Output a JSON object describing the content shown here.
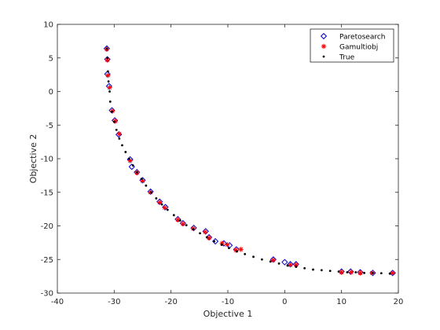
{
  "chart_data": {
    "type": "scatter",
    "xlabel": "Objective 1",
    "ylabel": "Objective 2",
    "xlim": [
      -40,
      20
    ],
    "ylim": [
      -30,
      10
    ],
    "xticks": [
      "-40",
      "-30",
      "-20",
      "-10",
      "0",
      "10",
      "20"
    ],
    "yticks": [
      "-30",
      "-25",
      "-20",
      "-15",
      "-10",
      "-5",
      "0",
      "5",
      "10"
    ],
    "xtick_values": [
      -40,
      -30,
      -20,
      -10,
      0,
      10,
      20
    ],
    "ytick_values": [
      -30,
      -25,
      -20,
      -15,
      -10,
      -5,
      0,
      5,
      10
    ],
    "legend_position": "top-right",
    "series": [
      {
        "name": "Paretosearch",
        "marker": "diamond",
        "color": "#0000cc",
        "points": [
          [
            -31.3,
            6.4
          ],
          [
            -31.2,
            4.8
          ],
          [
            -31.2,
            2.6
          ],
          [
            -30.9,
            0.8
          ],
          [
            -30.4,
            -2.8
          ],
          [
            -29.9,
            -4.3
          ],
          [
            -29.2,
            -6.4
          ],
          [
            -27.2,
            -10.1
          ],
          [
            -26.9,
            -11.2
          ],
          [
            -26.0,
            -12.0
          ],
          [
            -25.0,
            -13.2
          ],
          [
            -23.6,
            -14.9
          ],
          [
            -22.0,
            -16.4
          ],
          [
            -21.0,
            -17.2
          ],
          [
            -18.8,
            -19.0
          ],
          [
            -17.9,
            -19.6
          ],
          [
            -16.0,
            -20.3
          ],
          [
            -13.9,
            -20.8
          ],
          [
            -13.3,
            -21.7
          ],
          [
            -12.2,
            -22.3
          ],
          [
            -10.7,
            -22.6
          ],
          [
            -9.7,
            -22.9
          ],
          [
            -8.5,
            -23.5
          ],
          [
            -2.0,
            -25.0
          ],
          [
            0.0,
            -25.4
          ],
          [
            1.0,
            -25.7
          ],
          [
            2.0,
            -25.7
          ],
          [
            10.0,
            -26.8
          ],
          [
            11.6,
            -26.8
          ],
          [
            13.3,
            -26.9
          ],
          [
            15.5,
            -27.0
          ],
          [
            19.0,
            -27.0
          ]
        ]
      },
      {
        "name": "Gamultiobj",
        "marker": "asterisk",
        "color": "#ff0000",
        "points": [
          [
            -31.3,
            6.3
          ],
          [
            -31.2,
            4.7
          ],
          [
            -31.1,
            2.4
          ],
          [
            -30.8,
            0.6
          ],
          [
            -30.3,
            -2.9
          ],
          [
            -29.8,
            -4.4
          ],
          [
            -29.1,
            -6.3
          ],
          [
            -27.2,
            -10.3
          ],
          [
            -26.0,
            -12.1
          ],
          [
            -25.0,
            -13.3
          ],
          [
            -23.6,
            -15.0
          ],
          [
            -22.0,
            -16.5
          ],
          [
            -21.1,
            -17.3
          ],
          [
            -18.8,
            -19.1
          ],
          [
            -17.9,
            -19.7
          ],
          [
            -16.1,
            -20.4
          ],
          [
            -14.0,
            -20.9
          ],
          [
            -13.3,
            -21.8
          ],
          [
            -11.0,
            -22.6
          ],
          [
            -10.1,
            -22.8
          ],
          [
            -8.6,
            -23.6
          ],
          [
            -7.7,
            -23.5
          ],
          [
            -2.0,
            -25.1
          ],
          [
            1.0,
            -25.8
          ],
          [
            2.0,
            -25.8
          ],
          [
            10.0,
            -26.9
          ],
          [
            11.7,
            -26.9
          ],
          [
            13.3,
            -27.0
          ],
          [
            15.4,
            -27.0
          ],
          [
            19.0,
            -27.0
          ]
        ]
      },
      {
        "name": "True",
        "marker": "dot",
        "color": "#000000",
        "points": [
          [
            -31.3,
            6.4
          ],
          [
            -31.2,
            5.0
          ],
          [
            -31.1,
            3.0
          ],
          [
            -31.0,
            1.5
          ],
          [
            -30.8,
            0.0
          ],
          [
            -30.7,
            -1.5
          ],
          [
            -30.4,
            -3.0
          ],
          [
            -30.0,
            -4.5
          ],
          [
            -29.6,
            -5.7
          ],
          [
            -29.1,
            -7.0
          ],
          [
            -28.6,
            -8.0
          ],
          [
            -28.0,
            -9.0
          ],
          [
            -27.4,
            -10.0
          ],
          [
            -26.7,
            -11.0
          ],
          [
            -26.0,
            -12.0
          ],
          [
            -25.2,
            -13.0
          ],
          [
            -24.4,
            -14.0
          ],
          [
            -23.5,
            -15.0
          ],
          [
            -22.6,
            -15.9
          ],
          [
            -21.6,
            -16.8
          ],
          [
            -20.6,
            -17.6
          ],
          [
            -19.5,
            -18.4
          ],
          [
            -18.4,
            -19.2
          ],
          [
            -17.3,
            -19.9
          ],
          [
            -16.1,
            -20.5
          ],
          [
            -14.9,
            -21.1
          ],
          [
            -13.7,
            -21.7
          ],
          [
            -12.4,
            -22.3
          ],
          [
            -11.1,
            -22.8
          ],
          [
            -9.8,
            -23.3
          ],
          [
            -8.4,
            -23.8
          ],
          [
            -7.0,
            -24.2
          ],
          [
            -5.5,
            -24.6
          ],
          [
            -4.0,
            -25.0
          ],
          [
            -2.5,
            -25.3
          ],
          [
            -1.0,
            -25.6
          ],
          [
            0.5,
            -25.9
          ],
          [
            2.0,
            -26.1
          ],
          [
            3.5,
            -26.3
          ],
          [
            5.0,
            -26.5
          ],
          [
            6.5,
            -26.6
          ],
          [
            8.0,
            -26.7
          ],
          [
            9.5,
            -26.8
          ],
          [
            11.0,
            -26.9
          ],
          [
            12.5,
            -26.9
          ],
          [
            14.0,
            -27.0
          ],
          [
            15.5,
            -27.0
          ],
          [
            17.0,
            -27.05
          ],
          [
            18.5,
            -27.1
          ]
        ]
      }
    ]
  }
}
